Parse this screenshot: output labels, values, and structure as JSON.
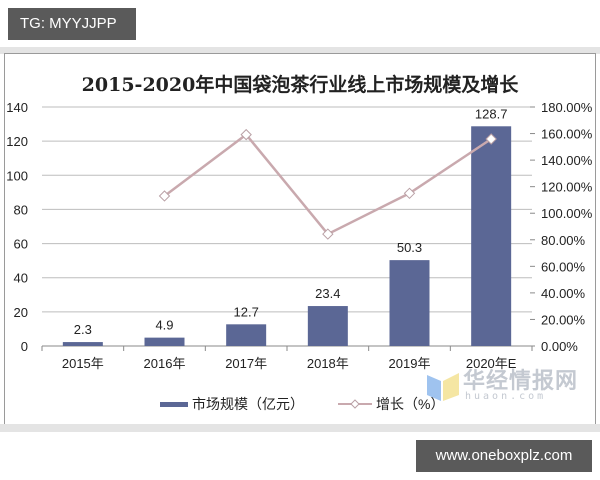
{
  "badges": {
    "tg": "TG: MYYJJPP",
    "url": "www.oneboxplz.com"
  },
  "watermark": {
    "name": "华经情报网",
    "sub": "huaon.com"
  },
  "colors": {
    "bar": "#5b6795",
    "line": "#c9a9ae",
    "grid": "#bdbdbd",
    "marker_fill": "#ffffff"
  },
  "chart_data": {
    "type": "bar+line",
    "title": "2015-2020年中国袋泡茶行业线上市场规模及增长",
    "categories": [
      "2015年",
      "2016年",
      "2017年",
      "2018年",
      "2019年",
      "2020年E"
    ],
    "series": [
      {
        "name": "市场规模（亿元）",
        "type": "bar",
        "axis": "left",
        "values": [
          2.3,
          4.9,
          12.7,
          23.4,
          50.3,
          128.7
        ],
        "labels": [
          "2.3",
          "4.9",
          "12.7",
          "23.4",
          "50.3",
          "128.7"
        ]
      },
      {
        "name": "增长（%）",
        "type": "line",
        "axis": "right",
        "values": [
          null,
          113.0,
          159.2,
          84.3,
          115.0,
          155.9
        ]
      }
    ],
    "left_axis": {
      "ylim": [
        0,
        140
      ],
      "ticks": [
        "0",
        "20",
        "40",
        "60",
        "80",
        "100",
        "120",
        "140"
      ]
    },
    "right_axis": {
      "ylim": [
        0,
        180
      ],
      "ticks": [
        "0.00%",
        "20.00%",
        "40.00%",
        "60.00%",
        "80.00%",
        "100.00%",
        "120.00%",
        "140.00%",
        "160.00%",
        "180.00%"
      ]
    },
    "grid": true,
    "legend_position": "bottom"
  }
}
